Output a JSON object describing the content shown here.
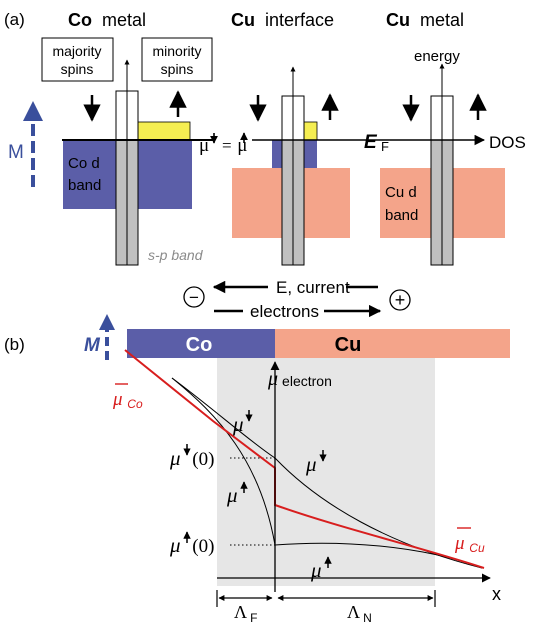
{
  "panel_a": {
    "label": "(a)",
    "co_metal": {
      "bold": "Co",
      "normal": "metal"
    },
    "cu_interface": {
      "bold": "Cu",
      "normal": "interface"
    },
    "cu_metal": {
      "bold": "Cu",
      "normal": "metal"
    },
    "majority_box": [
      "majority",
      "spins"
    ],
    "minority_box": [
      "minority",
      "spins"
    ],
    "energy": "energy",
    "mu_equation": {
      "left": "μ",
      "eq": "=",
      "right": "μ"
    },
    "fermi": {
      "main": "E",
      "sub": "F"
    },
    "dos": "DOS",
    "magnetization": "M",
    "co_d_band": [
      "Co d",
      "band"
    ],
    "cu_d_band": [
      "Cu d",
      "band"
    ],
    "sp_band": "s-p band",
    "current_label": "E, current",
    "electrons_label": "electrons",
    "minus": "−",
    "plus": "+",
    "colors": {
      "co_blue": "#5b5ea8",
      "cu_salmon": "#f4a48a",
      "yellow": "#f5ee52",
      "sp_gray": "#c0c0c0",
      "arrow_blue": "#3a4f9c"
    }
  },
  "panel_b": {
    "label": "(b)",
    "magnetization": "M",
    "co_bar": "Co",
    "cu_bar": "Cu",
    "mu_electron": {
      "main": "μ",
      "sub": "electron"
    },
    "mubar_co": {
      "main": "μ",
      "sub": "Co"
    },
    "mubar_cu": {
      "main": "μ",
      "sub": "Cu"
    },
    "mu_down": "μ",
    "mu_up": "μ",
    "mu_down_zero": {
      "main": "μ",
      "arg": "(0)"
    },
    "mu_up_zero": {
      "main": "μ",
      "arg": "(0)"
    },
    "x_axis": "x",
    "lambda_f": {
      "main": "Λ",
      "sub": "F"
    },
    "lambda_n": {
      "main": "Λ",
      "sub": "N"
    },
    "colors": {
      "co_blue": "#5b5ea8",
      "cu_salmon": "#f4a48a",
      "gray_region": "#e6e6e6",
      "red": "#d81e1e"
    }
  }
}
